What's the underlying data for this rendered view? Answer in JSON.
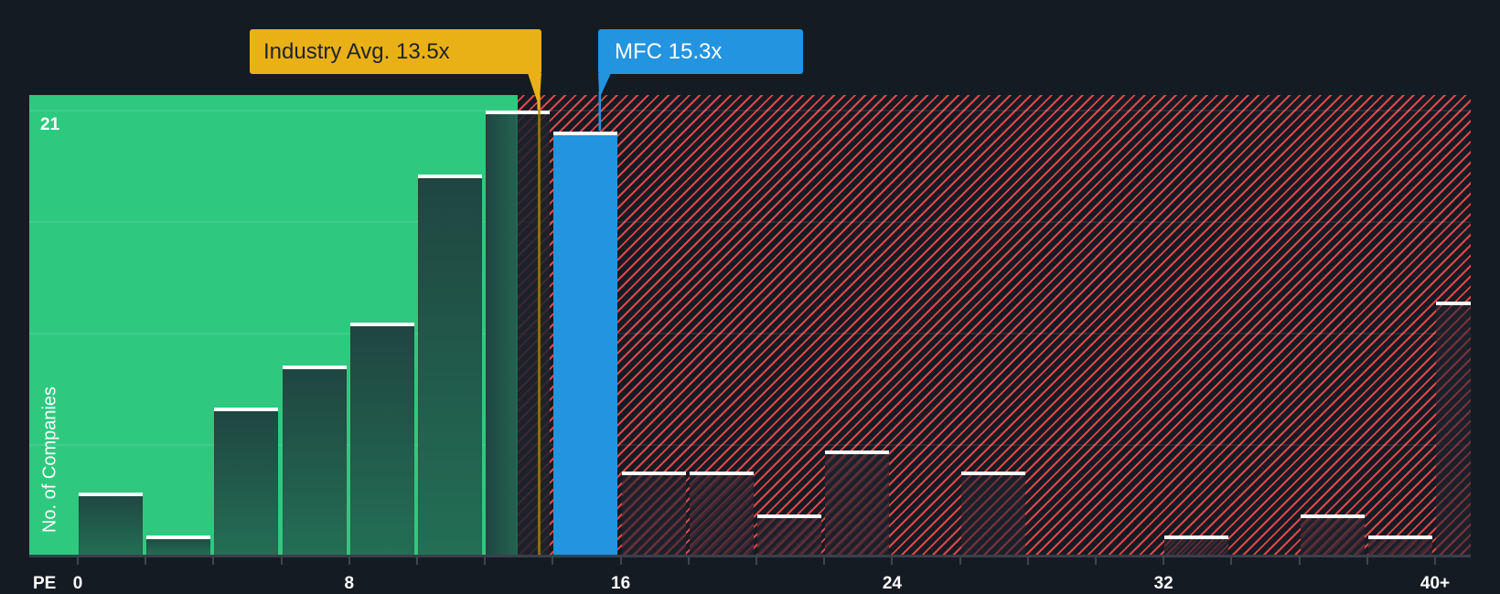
{
  "chart_data": {
    "type": "bar",
    "title": "",
    "xlabel": "PE",
    "ylabel": "No. of Companies",
    "bin_width": 2,
    "categories": [
      "0-2",
      "2-4",
      "4-6",
      "6-8",
      "8-10",
      "10-12",
      "12-14",
      "14-16",
      "16-18",
      "18-20",
      "20-22",
      "22-24",
      "24-26",
      "26-28",
      "28-30",
      "30-32",
      "32-34",
      "34-36",
      "36-38",
      "38-40",
      "40+"
    ],
    "values": [
      3,
      1,
      7,
      9,
      11,
      18,
      21,
      20,
      4,
      4,
      2,
      5,
      0,
      4,
      0,
      0,
      1,
      0,
      2,
      1,
      12
    ],
    "highlight_index": 7,
    "x_ticks": [
      "0",
      "8",
      "16",
      "24",
      "32",
      "40+"
    ],
    "y_ticks_labeled": [
      "21"
    ],
    "ylim": [
      0,
      21
    ],
    "grid": true,
    "gridline_count": 4,
    "fair_zone_end_pe": 13,
    "annotations": [
      {
        "label": "Industry Avg. 13.5x",
        "value": 13.5,
        "color": "#eab117"
      },
      {
        "label": "MFC 15.3x",
        "value": 15.3,
        "color": "#2394e0"
      }
    ]
  },
  "labels": {
    "industry_avg": "Industry Avg. 13.5x",
    "company": "MFC 15.3x",
    "x_axis_name": "PE",
    "y_axis_title": "No. of Companies",
    "y_max": "21"
  },
  "colors": {
    "background": "#151b23",
    "fair_zone": "#2ec97f",
    "overvalued_hatch": "#e0474b",
    "industry_avg": "#eab117",
    "company_highlight": "#2394e0"
  }
}
